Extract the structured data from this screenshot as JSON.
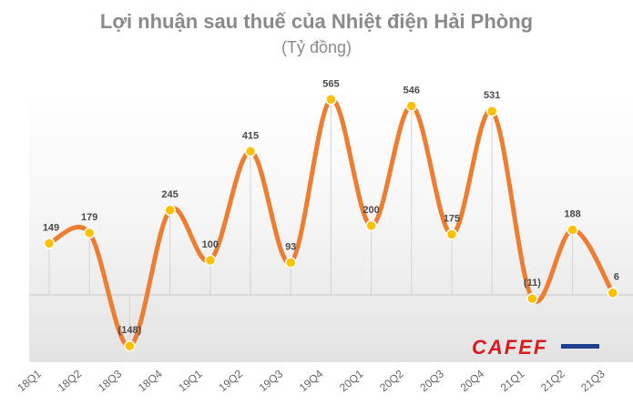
{
  "header": {
    "title": "Lợi nhuận sau thuế của Nhiệt điện Hải Phòng",
    "subtitle": "(Tỷ đồng)"
  },
  "logo": {
    "text": "CAFEF",
    "color": "#d71920"
  },
  "colors": {
    "line": "#ed7d31",
    "marker_fill": "#ffc000",
    "marker_stroke": "#ffffff"
  },
  "chart_data": {
    "type": "line",
    "smooth": true,
    "categories": [
      "18Q1",
      "18Q2",
      "18Q3",
      "18Q4",
      "19Q1",
      "19Q2",
      "19Q3",
      "19Q4",
      "20Q1",
      "20Q2",
      "20Q3",
      "20Q4",
      "21Q1",
      "21Q2",
      "21Q3"
    ],
    "values": [
      149,
      179,
      -148,
      245,
      100,
      415,
      93,
      565,
      200,
      546,
      175,
      531,
      -11,
      188,
      6
    ],
    "data_labels": [
      "149",
      "179",
      "(148)",
      "245",
      "100",
      "415",
      "93",
      "565",
      "200",
      "546",
      "175",
      "531",
      "(11)",
      "188",
      "6"
    ],
    "ylim": [
      -200,
      650
    ],
    "grid": true,
    "legend": "none"
  }
}
